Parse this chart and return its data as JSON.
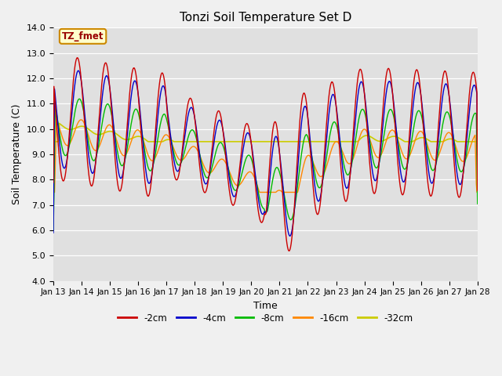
{
  "title": "Tonzi Soil Temperature Set D",
  "xlabel": "Time",
  "ylabel": "Soil Temperature (C)",
  "ylim": [
    4.0,
    14.0
  ],
  "yticks": [
    4.0,
    5.0,
    6.0,
    7.0,
    8.0,
    9.0,
    10.0,
    11.0,
    12.0,
    13.0,
    14.0
  ],
  "n_days": 15,
  "xtick_labels": [
    "Jan 13",
    "Jan 14",
    "Jan 15",
    "Jan 16",
    "Jan 17",
    "Jan 18",
    "Jan 19",
    "Jan 20",
    "Jan 21",
    "Jan 22",
    "Jan 23",
    "Jan 24",
    "Jan 25",
    "Jan 26",
    "Jan 27",
    "Jan 28"
  ],
  "colors": {
    "-2cm": "#cc0000",
    "-4cm": "#0000cc",
    "-8cm": "#00bb00",
    "-16cm": "#ff8800",
    "-32cm": "#cccc00"
  },
  "legend_label": "TZ_fmet",
  "plot_bg": "#e0e0e0",
  "fig_bg": "#f0f0f0"
}
